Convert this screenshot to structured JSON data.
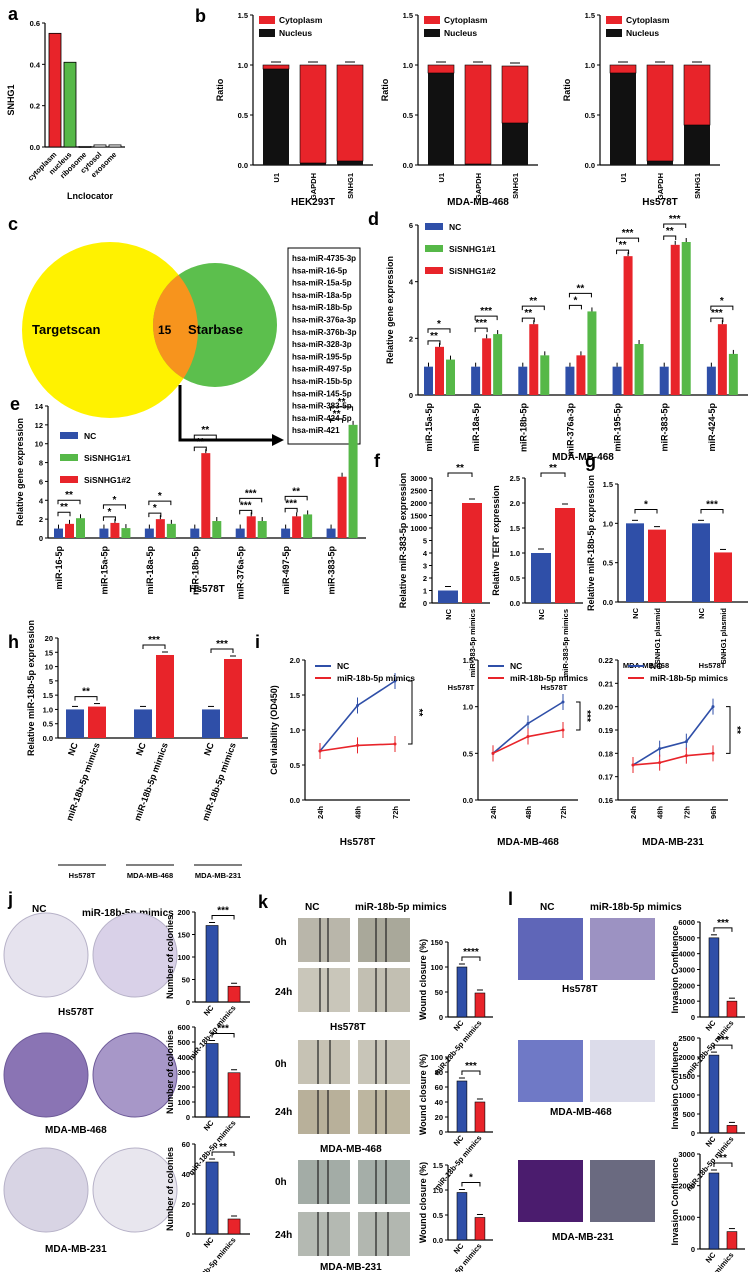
{
  "panel_labels": [
    "a",
    "b",
    "c",
    "d",
    "e",
    "f",
    "g",
    "h",
    "i",
    "j",
    "k",
    "l"
  ],
  "colors": {
    "red": "#e8242a",
    "green": "#56b848",
    "blue": "#2f4fa8",
    "black": "#111111",
    "yellow": "#fff200",
    "venn_green": "#5cbf4d",
    "overlap": "#f7941d",
    "purple_dish": "#9a8cc4",
    "wound": "#b8b4a4",
    "crystal": "#4a46a0"
  },
  "chart_data": [
    {
      "id": "a",
      "type": "bar",
      "title": "",
      "xlabel": "Lnclocator",
      "ylabel": "SNHG1",
      "categories": [
        "cytoplasm",
        "nucleus",
        "ribosome",
        "cytosol",
        "exosome"
      ],
      "values": [
        0.55,
        0.41,
        0.003,
        0.01,
        0.01
      ],
      "bar_colors": [
        "red",
        "green",
        "white",
        "white",
        "white"
      ],
      "ylim": [
        0,
        0.6
      ],
      "yticks": [
        "0.0",
        "0.2",
        "0.4",
        "0.6"
      ]
    },
    {
      "id": "b1",
      "type": "bar",
      "stacked": true,
      "title": "HEK293T",
      "ylabel": "Ratio",
      "categories": [
        "U1",
        "GAPDH",
        "SNHG1"
      ],
      "series": [
        {
          "name": "Cytoplasm",
          "values": [
            0.04,
            0.98,
            0.96
          ]
        },
        {
          "name": "Nucleus",
          "values": [
            0.96,
            0.02,
            0.04
          ]
        }
      ],
      "ylim": [
        0,
        1.5
      ],
      "yticks": [
        "0.0",
        "0.5",
        "1.0",
        "1.5"
      ]
    },
    {
      "id": "b2",
      "type": "bar",
      "stacked": true,
      "title": "MDA-MB-468",
      "ylabel": "Ratio",
      "categories": [
        "U1",
        "GAPDH",
        "SNHG1"
      ],
      "series": [
        {
          "name": "Cytoplasm",
          "values": [
            0.08,
            0.99,
            0.57
          ]
        },
        {
          "name": "Nucleus",
          "values": [
            0.92,
            0.01,
            0.42
          ]
        }
      ],
      "ylim": [
        0,
        1.5
      ],
      "yticks": [
        "0.0",
        "0.5",
        "1.0",
        "1.5"
      ]
    },
    {
      "id": "b3",
      "type": "bar",
      "stacked": true,
      "title": "Hs578T",
      "ylabel": "Ratio",
      "categories": [
        "U1",
        "GAPDH",
        "SNHG1"
      ],
      "series": [
        {
          "name": "Cytoplasm",
          "values": [
            0.08,
            0.96,
            0.6
          ]
        },
        {
          "name": "Nucleus",
          "values": [
            0.92,
            0.04,
            0.4
          ]
        }
      ],
      "ylim": [
        0,
        1.5
      ],
      "yticks": [
        "0.0",
        "0.5",
        "1.0",
        "1.5"
      ]
    },
    {
      "id": "d",
      "type": "bar",
      "title": "MDA-MB-468",
      "ylabel": "Relative gene expression",
      "categories": [
        "miR-15a-5p",
        "miR-18a-5p",
        "miR-18b-5p",
        "miR-376a-3p",
        "miR-195-5p",
        "miR-383-5p",
        "miR-424-5p"
      ],
      "series": [
        {
          "name": "NC",
          "values": [
            1,
            1,
            1,
            1,
            1,
            1,
            1
          ]
        },
        {
          "name": "SiSNHG1#1",
          "values": [
            1.25,
            2.15,
            1.4,
            2.95,
            1.8,
            5.4,
            1.45
          ]
        },
        {
          "name": "SiSNHG1#2",
          "values": [
            1.7,
            2.0,
            2.5,
            1.4,
            4.9,
            5.3,
            2.5
          ]
        }
      ],
      "ylim": [
        0,
        6
      ],
      "yticks": [
        "0",
        "2",
        "4",
        "6"
      ],
      "stars": [
        [
          "*",
          "**"
        ],
        [
          "***",
          "***"
        ],
        [
          "**",
          "**"
        ],
        [
          "**",
          "*"
        ],
        [
          "***",
          "**"
        ],
        [
          "***",
          "**"
        ],
        [
          "*",
          "***"
        ]
      ]
    },
    {
      "id": "e",
      "type": "bar",
      "title": "Hs578T",
      "ylabel": "Relative gene expression",
      "categories": [
        "miR-16-5p",
        "miR-15a-5p",
        "miR-18a-5p",
        "miR-18b-5p",
        "miR-376a-5p",
        "miR-497-5p",
        "miR-383-5p"
      ],
      "series": [
        {
          "name": "NC",
          "values": [
            1,
            1,
            1,
            1,
            1,
            1,
            1
          ]
        },
        {
          "name": "SiSNHG1#1",
          "values": [
            2.1,
            1.05,
            1.5,
            1.8,
            1.8,
            2.5,
            12
          ]
        },
        {
          "name": "SiSNHG1#2",
          "values": [
            1.5,
            1.6,
            2.0,
            9.0,
            2.3,
            2.3,
            6.5
          ]
        }
      ],
      "yticks": [
        "0",
        "2",
        "4",
        "6",
        "8",
        "10",
        "12",
        "14"
      ],
      "stars": [
        [
          "**",
          "**"
        ],
        [
          "*",
          "*"
        ],
        [
          "*",
          "*"
        ],
        [
          "**",
          "**"
        ],
        [
          "***",
          "***"
        ],
        [
          "**",
          "***"
        ],
        [
          "**",
          "**"
        ]
      ]
    },
    {
      "id": "f1",
      "type": "bar",
      "title": "Hs578T",
      "ylabel": "Relative miR-383-5p expression",
      "categories": [
        "NC",
        "miR-383-5p mimics"
      ],
      "values": [
        1,
        2300
      ],
      "yticks": [
        "0",
        "1",
        "2",
        "3",
        "4",
        "5",
        "1000",
        "1500",
        "2000",
        "2500",
        "3000"
      ],
      "stars": "**"
    },
    {
      "id": "f2",
      "type": "bar",
      "title": "Hs578T",
      "ylabel": "Relative TERT expression",
      "categories": [
        "NC",
        "miR-383-5p mimics"
      ],
      "values": [
        1,
        1.9
      ],
      "yticks": [
        "0.0",
        "0.5",
        "1.0",
        "1.5",
        "2.0",
        "2.5"
      ],
      "stars": "**"
    },
    {
      "id": "g",
      "type": "bar",
      "ylabel": "Relative miR-18b-5p expression",
      "groups": [
        "MDA-MB-468",
        "Hs578T"
      ],
      "categories": [
        "NC",
        "SNHG1 plasmid",
        "NC",
        "SNHG1 plasmid"
      ],
      "values": [
        1,
        0.92,
        1,
        0.63
      ],
      "yticks": [
        "0.0",
        "0.5",
        "1.0",
        "1.5"
      ],
      "stars": [
        "*",
        "***"
      ]
    },
    {
      "id": "h",
      "type": "bar",
      "ylabel": "Relative miR-18b-5p expression",
      "groups": [
        "Hs578T",
        "MDA-MB-468",
        "MDA-MB-231"
      ],
      "categories": [
        "NC",
        "miR-18b-5p mimics",
        "NC",
        "miR-18b-5p mimics",
        "NC",
        "miR-18b-5p mimics"
      ],
      "values": [
        1,
        1.1,
        1,
        14.5,
        1,
        13.2
      ],
      "yticks": [
        "0.0",
        "0.5",
        "1.0",
        "1.5",
        "5",
        "10",
        "15",
        "20"
      ],
      "stars": [
        "**",
        "***",
        "***"
      ]
    },
    {
      "id": "i1",
      "type": "line",
      "title": "Hs578T",
      "ylabel": "Cell viability (OD450)",
      "x": [
        "24h",
        "48h",
        "72h"
      ],
      "series": [
        {
          "name": "NC",
          "values": [
            0.7,
            1.35,
            1.7
          ]
        },
        {
          "name": "miR-18b-5p mimics",
          "values": [
            0.7,
            0.78,
            0.8
          ]
        }
      ],
      "ylim": [
        0,
        2
      ],
      "yticks": [
        "0.0",
        "0.5",
        "1.0",
        "1.5",
        "2.0"
      ],
      "stars": "**"
    },
    {
      "id": "i2",
      "type": "line",
      "title": "MDA-MB-468",
      "x": [
        "24h",
        "48h",
        "72h"
      ],
      "series": [
        {
          "name": "NC",
          "values": [
            0.5,
            0.82,
            1.05
          ]
        },
        {
          "name": "miR-18b-5p mimics",
          "values": [
            0.5,
            0.68,
            0.75
          ]
        }
      ],
      "ylim": [
        0,
        1.5
      ],
      "yticks": [
        "0.0",
        "0.5",
        "1.0",
        "1.5"
      ],
      "stars": "***"
    },
    {
      "id": "i3",
      "type": "line",
      "title": "MDA-MB-231",
      "x": [
        "24h",
        "48h",
        "72h",
        "96h"
      ],
      "series": [
        {
          "name": "NC",
          "values": [
            0.175,
            0.182,
            0.185,
            0.2
          ]
        },
        {
          "name": "miR-18b-5p mimics",
          "values": [
            0.175,
            0.176,
            0.179,
            0.18
          ]
        }
      ],
      "ylim": [
        0.16,
        0.22
      ],
      "yticks": [
        "0.16",
        "0.17",
        "0.18",
        "0.19",
        "0.20",
        "0.21",
        "0.22"
      ],
      "stars": "**"
    },
    {
      "id": "j1",
      "type": "bar",
      "ylabel": "Number of colonies",
      "categories": [
        "NC",
        "miR-18b-5p mimics"
      ],
      "values": [
        170,
        35
      ],
      "ylim": [
        0,
        200
      ],
      "yticks": [
        "0",
        "50",
        "100",
        "150",
        "200"
      ],
      "stars": "***"
    },
    {
      "id": "j2",
      "type": "bar",
      "ylabel": "Number of colonies",
      "categories": [
        "NC",
        "miR-18b-5p mimics"
      ],
      "values": [
        490,
        295
      ],
      "ylim": [
        0,
        600
      ],
      "yticks": [
        "0",
        "100",
        "200",
        "300",
        "400",
        "500",
        "600"
      ],
      "stars": "***"
    },
    {
      "id": "j3",
      "type": "bar",
      "ylabel": "Number of colonies",
      "categories": [
        "NC",
        "miR-18b-5p mimics"
      ],
      "values": [
        48,
        10
      ],
      "ylim": [
        0,
        60
      ],
      "yticks": [
        "0",
        "20",
        "40",
        "60"
      ],
      "stars": "**"
    },
    {
      "id": "k1",
      "type": "bar",
      "ylabel": "Wound closure (%)",
      "categories": [
        "NC",
        "miR-18b-5p mimics"
      ],
      "values": [
        100,
        48
      ],
      "ylim": [
        0,
        150
      ],
      "yticks": [
        "0",
        "50",
        "100",
        "150"
      ],
      "stars": "****"
    },
    {
      "id": "k2",
      "type": "bar",
      "ylabel": "Wound closure (%)",
      "categories": [
        "NC",
        "miR-18b-5p mimics"
      ],
      "values": [
        68,
        40
      ],
      "ylim": [
        0,
        100
      ],
      "yticks": [
        "0",
        "20",
        "40",
        "60",
        "80",
        "100"
      ],
      "stars": "***"
    },
    {
      "id": "k3",
      "type": "bar",
      "ylabel": "Wound closure (%)",
      "categories": [
        "NC",
        "miR-18b-5p mimics"
      ],
      "values": [
        0.95,
        0.45
      ],
      "ylim": [
        0,
        1.5
      ],
      "yticks": [
        "0.0",
        "0.5",
        "1.0",
        "1.5"
      ],
      "stars": "*"
    },
    {
      "id": "l1",
      "type": "bar",
      "ylabel": "Invasion Confluence",
      "categories": [
        "NC",
        "miR-18b-5p mimics"
      ],
      "values": [
        5000,
        1000
      ],
      "ylim": [
        0,
        6000
      ],
      "yticks": [
        "0",
        "1000",
        "2000",
        "3000",
        "4000",
        "5000",
        "6000"
      ],
      "stars": "***"
    },
    {
      "id": "l2",
      "type": "bar",
      "ylabel": "Invasion Confluence",
      "categories": [
        "NC",
        "miR-18b-5p mimics"
      ],
      "values": [
        2050,
        200
      ],
      "ylim": [
        0,
        2500
      ],
      "yticks": [
        "0",
        "500",
        "1000",
        "1500",
        "2000",
        "2500"
      ],
      "stars": "***"
    },
    {
      "id": "l3",
      "type": "bar",
      "ylabel": "Invasion Confluence",
      "categories": [
        "NC",
        "miR-18b-5p mimics"
      ],
      "values": [
        2400,
        550
      ],
      "ylim": [
        0,
        3000
      ],
      "yticks": [
        "0",
        "1000",
        "2000",
        "3000"
      ],
      "stars": "**"
    }
  ],
  "venn": {
    "left": "Targetscan",
    "right": "Starbase",
    "overlap": "15",
    "mirnas": [
      "hsa-miR-4735-3p",
      "hsa-miR-16-5p",
      "hsa-miR-15a-5p",
      "hsa-miR-18a-5p",
      "hsa-miR-18b-5p",
      "hsa-miR-376a-3p",
      "hsa-miR-376b-3p",
      "hsa-miR-328-3p",
      "hsa-miR-195-5p",
      "hsa-miR-497-5p",
      "hsa-miR-15b-5p",
      "hsa-miR-145-5p",
      "hsa-miR-383-5p",
      "hsa-miR-424-5p",
      "hsa-miR-421"
    ]
  },
  "image_labels": {
    "nc": "NC",
    "mimics": "miR-18b-5p mimics",
    "t0": "0h",
    "t24": "24h",
    "cells": [
      "Hs578T",
      "MDA-MB-468",
      "MDA-MB-231"
    ]
  },
  "tick_labels": {
    "nc": "NC",
    "mimics_small": "miR-18b-5p mimics"
  }
}
